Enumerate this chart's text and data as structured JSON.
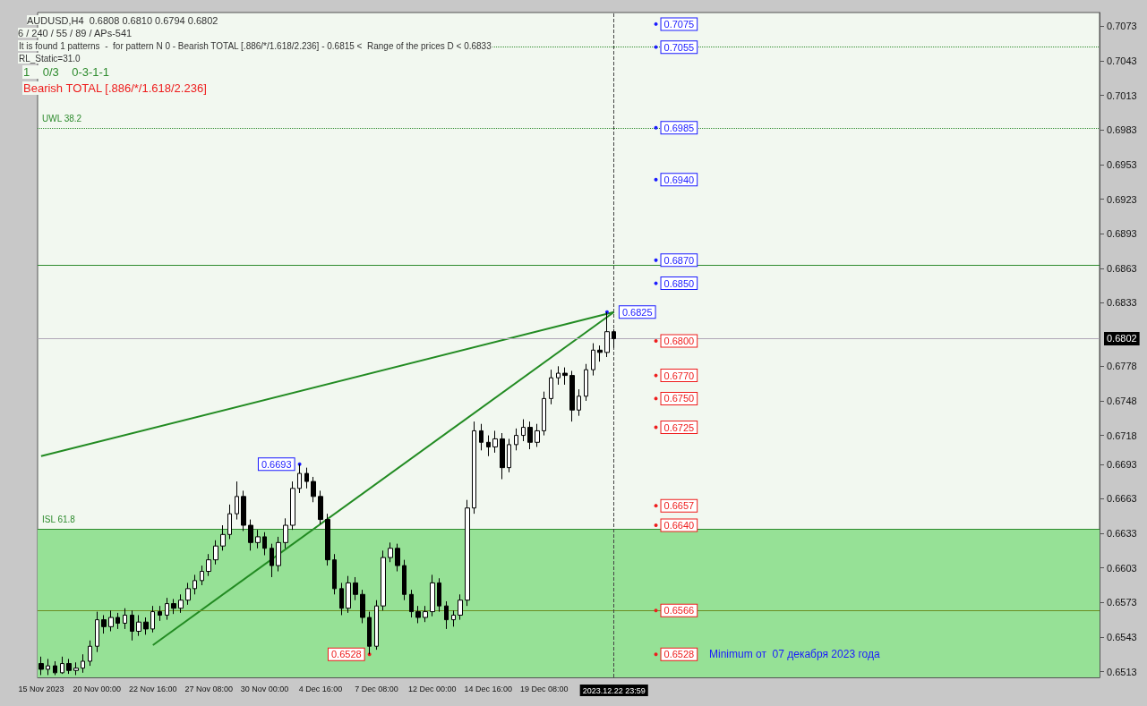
{
  "chart_data": {
    "type": "candlestick",
    "title": "AUDUSD,H4  0.6808 0.6810 0.6794 0.6802",
    "subtitle": "6 / 240 / 55 / 89 / APs-541",
    "categories": [
      "15 Nov 2023",
      null,
      null,
      null,
      null,
      null,
      null,
      null,
      "20 Nov 00:00",
      null,
      null,
      null,
      null,
      null,
      null,
      null,
      "22 Nov 16:00",
      null,
      null,
      null,
      null,
      null,
      null,
      null,
      "27 Nov 08:00",
      null,
      null,
      null,
      null,
      null,
      null,
      null,
      "30 Nov 00:00",
      null,
      null,
      null,
      null,
      null,
      null,
      null,
      "4 Dec 16:00",
      null,
      null,
      null,
      null,
      null,
      null,
      null,
      "7 Dec 08:00",
      null,
      null,
      null,
      null,
      null,
      null,
      null,
      "12 Dec 00:00",
      null,
      null,
      null,
      null,
      null,
      null,
      null,
      "14 Dec 16:00",
      null,
      null,
      null,
      null,
      null,
      null,
      null,
      "19 Dec 08:00",
      null,
      null,
      null,
      null,
      null,
      null,
      null,
      null,
      null,
      "2023.12.22 23:59",
      null,
      null,
      null,
      null,
      null,
      null,
      null,
      null,
      null,
      null,
      null,
      null,
      null,
      null,
      null,
      null,
      null,
      null,
      null,
      null,
      null,
      null,
      null,
      null,
      null,
      null,
      null,
      null,
      null,
      null,
      null,
      null,
      null,
      null,
      null,
      null,
      null,
      null,
      null,
      null,
      null,
      null,
      null,
      null,
      null,
      null,
      null,
      null,
      null,
      null,
      null,
      null,
      null,
      null,
      null,
      null,
      null,
      null,
      null,
      null,
      null,
      null,
      null,
      null,
      null,
      null,
      null,
      null,
      null
    ],
    "color": "#000000",
    "ohlc": [
      [
        0.652,
        0.6526,
        0.651,
        0.6515
      ],
      [
        0.6515,
        0.6524,
        0.651,
        0.6518
      ],
      [
        0.6518,
        0.6522,
        0.651,
        0.6512
      ],
      [
        0.6512,
        0.6526,
        0.6511,
        0.652
      ],
      [
        0.652,
        0.6524,
        0.6511,
        0.6514
      ],
      [
        0.6514,
        0.6521,
        0.651,
        0.6516
      ],
      [
        0.6516,
        0.6528,
        0.6512,
        0.6522
      ],
      [
        0.6522,
        0.654,
        0.6518,
        0.6535
      ],
      [
        0.6535,
        0.6565,
        0.653,
        0.6558
      ],
      [
        0.6558,
        0.6562,
        0.6546,
        0.6552
      ],
      [
        0.6552,
        0.6566,
        0.6548,
        0.656
      ],
      [
        0.656,
        0.6564,
        0.655,
        0.6555
      ],
      [
        0.6555,
        0.6568,
        0.655,
        0.6562
      ],
      [
        0.6562,
        0.6566,
        0.654,
        0.6548
      ],
      [
        0.6548,
        0.6562,
        0.6544,
        0.6556
      ],
      [
        0.6556,
        0.656,
        0.6545,
        0.655
      ],
      [
        0.655,
        0.657,
        0.6547,
        0.6565
      ],
      [
        0.6565,
        0.657,
        0.6557,
        0.6562
      ],
      [
        0.6562,
        0.6577,
        0.6558,
        0.6572
      ],
      [
        0.6572,
        0.6576,
        0.6563,
        0.6568
      ],
      [
        0.6568,
        0.658,
        0.6564,
        0.6575
      ],
      [
        0.6575,
        0.659,
        0.6571,
        0.6585
      ],
      [
        0.6585,
        0.6597,
        0.658,
        0.6592
      ],
      [
        0.6592,
        0.6605,
        0.6588,
        0.66
      ],
      [
        0.66,
        0.6615,
        0.6596,
        0.661
      ],
      [
        0.661,
        0.6627,
        0.6606,
        0.6622
      ],
      [
        0.6622,
        0.664,
        0.6618,
        0.6632
      ],
      [
        0.6632,
        0.6658,
        0.6628,
        0.665
      ],
      [
        0.665,
        0.6678,
        0.6645,
        0.6665
      ],
      [
        0.6665,
        0.667,
        0.6635,
        0.664
      ],
      [
        0.664,
        0.6645,
        0.6618,
        0.6625
      ],
      [
        0.6625,
        0.6636,
        0.662,
        0.663
      ],
      [
        0.663,
        0.6634,
        0.6614,
        0.662
      ],
      [
        0.662,
        0.6624,
        0.6595,
        0.6605
      ],
      [
        0.6605,
        0.663,
        0.66,
        0.6625
      ],
      [
        0.6625,
        0.6646,
        0.662,
        0.664
      ],
      [
        0.664,
        0.6678,
        0.6636,
        0.6672
      ],
      [
        0.6672,
        0.6693,
        0.6668,
        0.6685
      ],
      [
        0.6685,
        0.669,
        0.6672,
        0.6678
      ],
      [
        0.6678,
        0.6682,
        0.666,
        0.6665
      ],
      [
        0.6665,
        0.667,
        0.6641,
        0.6645
      ],
      [
        0.6645,
        0.665,
        0.6605,
        0.661
      ],
      [
        0.661,
        0.6615,
        0.658,
        0.6585
      ],
      [
        0.6585,
        0.659,
        0.6562,
        0.6568
      ],
      [
        0.6568,
        0.6596,
        0.6564,
        0.659
      ],
      [
        0.659,
        0.6595,
        0.6575,
        0.658
      ],
      [
        0.658,
        0.6584,
        0.6555,
        0.656
      ],
      [
        0.656,
        0.6565,
        0.6528,
        0.6535
      ],
      [
        0.6535,
        0.6575,
        0.6532,
        0.657
      ],
      [
        0.657,
        0.6618,
        0.6566,
        0.6612
      ],
      [
        0.6612,
        0.6625,
        0.6608,
        0.662
      ],
      [
        0.662,
        0.6624,
        0.66,
        0.6605
      ],
      [
        0.6605,
        0.661,
        0.6575,
        0.658
      ],
      [
        0.658,
        0.6584,
        0.656,
        0.6565
      ],
      [
        0.6565,
        0.657,
        0.6555,
        0.656
      ],
      [
        0.656,
        0.657,
        0.6556,
        0.6565
      ],
      [
        0.6565,
        0.6597,
        0.6561,
        0.659
      ],
      [
        0.659,
        0.6594,
        0.6565,
        0.657
      ],
      [
        0.657,
        0.6574,
        0.655,
        0.6558
      ],
      [
        0.6558,
        0.6566,
        0.6552,
        0.6562
      ],
      [
        0.6562,
        0.658,
        0.6558,
        0.6575
      ],
      [
        0.6575,
        0.6662,
        0.657,
        0.6655
      ],
      [
        0.6655,
        0.673,
        0.665,
        0.6722
      ],
      [
        0.6722,
        0.6728,
        0.6705,
        0.6712
      ],
      [
        0.6712,
        0.6718,
        0.67,
        0.6708
      ],
      [
        0.6708,
        0.6722,
        0.6703,
        0.6715
      ],
      [
        0.6715,
        0.672,
        0.668,
        0.669
      ],
      [
        0.669,
        0.6715,
        0.6686,
        0.671
      ],
      [
        0.671,
        0.6724,
        0.6705,
        0.6718
      ],
      [
        0.6718,
        0.6732,
        0.6713,
        0.6725
      ],
      [
        0.6725,
        0.673,
        0.6706,
        0.6712
      ],
      [
        0.6712,
        0.6728,
        0.6708,
        0.6722
      ],
      [
        0.6722,
        0.6756,
        0.6718,
        0.675
      ],
      [
        0.675,
        0.6775,
        0.6745,
        0.6768
      ],
      [
        0.6768,
        0.6778,
        0.6762,
        0.6772
      ],
      [
        0.6772,
        0.6777,
        0.6762,
        0.677
      ],
      [
        0.677,
        0.6774,
        0.673,
        0.674
      ],
      [
        0.674,
        0.6758,
        0.6735,
        0.6752
      ],
      [
        0.6752,
        0.678,
        0.6748,
        0.6775
      ],
      [
        0.6775,
        0.6798,
        0.677,
        0.6792
      ],
      [
        0.6792,
        0.6796,
        0.6782,
        0.679
      ],
      [
        0.679,
        0.6825,
        0.6786,
        0.6808
      ],
      [
        0.6808,
        0.681,
        0.6794,
        0.6802
      ],
      null,
      null,
      null,
      null,
      null,
      null,
      null,
      null,
      null,
      null,
      null,
      null,
      null,
      null,
      null,
      null,
      null,
      null,
      null,
      null,
      null,
      null,
      null,
      null,
      null,
      null,
      null,
      null,
      null,
      null,
      null,
      null,
      null,
      null,
      null,
      null,
      null,
      null,
      null,
      null,
      null,
      null,
      null,
      null,
      null,
      null,
      null,
      null,
      null,
      null,
      null,
      null,
      null,
      null,
      null,
      null,
      null,
      null,
      null,
      null,
      null,
      null,
      null,
      null,
      null,
      null,
      null,
      null,
      null
    ],
    "series": [
      {
        "type": "line",
        "color": "#228b22",
        "x": [
          "15 Nov 2023",
          "2023.12.22 23:59"
        ],
        "values": [
          0.67,
          0.6825
        ]
      },
      {
        "type": "line",
        "color": "#228b22",
        "x": [
          "22 Nov 16:00",
          "2023.12.22 23:59"
        ],
        "values": [
          0.6536,
          0.6825
        ]
      }
    ],
    "ylim": [
      0.6508,
      0.7085
    ],
    "yticks": [
      0.7073,
      0.7043,
      0.7013,
      0.6983,
      0.6953,
      0.6923,
      0.6893,
      0.6863,
      0.6833,
      0.6778,
      0.6748,
      0.6718,
      0.6693,
      0.6663,
      0.6633,
      0.6603,
      0.6573,
      0.6543,
      0.6513
    ],
    "grid": false,
    "ref_lines": [
      {
        "axis": "y",
        "value": 0.7055,
        "color": "#2e8b2e",
        "line_style": "dotted"
      },
      {
        "axis": "y",
        "value": 0.6985,
        "label": "UWL 38.2",
        "color": "#2e8b2e",
        "line_style": "dotted"
      },
      {
        "axis": "y",
        "value": 0.6866,
        "color": "#2e8b2e",
        "line_style": "solid"
      },
      {
        "axis": "y",
        "value": 0.6637,
        "label": "ISL 61.8",
        "color": "#2e8b2e",
        "line_style": "solid"
      },
      {
        "axis": "y",
        "value": 0.6566,
        "color": "#6b8e23",
        "line_style": "solid"
      },
      {
        "axis": "x",
        "value": "2023.12.22 23:59",
        "color": "#444444",
        "line_style": "dashed"
      },
      {
        "axis": "y",
        "value": 0.6802,
        "label": "0.6802",
        "color": "#b0a8b8",
        "line_style": "solid"
      }
    ],
    "bands": [
      {
        "axis": "y",
        "from": 0.6508,
        "to": 0.6637,
        "color": "#96e196"
      }
    ],
    "annotations": [
      "It is found 1 patterns  -  for pattern N 0 - Bearish TOTAL [.886/*/1.618/2.236] - 0.6815 <  Range of the prices D < 0.6833",
      "RL_Static=31.0",
      "1    0/3    0-3-1-1",
      "Bearish TOTAL [.886/*/1.618/2.236]",
      "Minimum от  07 декабря 2023 года",
      {
        "text": "0.6693",
        "y": 0.6693
      },
      {
        "text": "0.6528",
        "y": 0.6528
      },
      {
        "text": "0.6825",
        "y": 0.6825
      },
      {
        "text": "0.7075",
        "y": 0.7075
      },
      {
        "text": "0.7055",
        "y": 0.7055
      },
      {
        "text": "0.6985",
        "y": 0.6985
      },
      {
        "text": "0.6940",
        "y": 0.694
      },
      {
        "text": "0.6870",
        "y": 0.687
      },
      {
        "text": "0.6850",
        "y": 0.685
      },
      {
        "text": "0.6800",
        "y": 0.68
      },
      {
        "text": "0.6770",
        "y": 0.677
      },
      {
        "text": "0.6750",
        "y": 0.675
      },
      {
        "text": "0.6725",
        "y": 0.6725
      },
      {
        "text": "0.6657",
        "y": 0.6657
      },
      {
        "text": "0.6640",
        "y": 0.664
      },
      {
        "text": "0.6566",
        "y": 0.6566
      },
      {
        "text": "0.6528",
        "y": 0.6528
      }
    ]
  }
}
